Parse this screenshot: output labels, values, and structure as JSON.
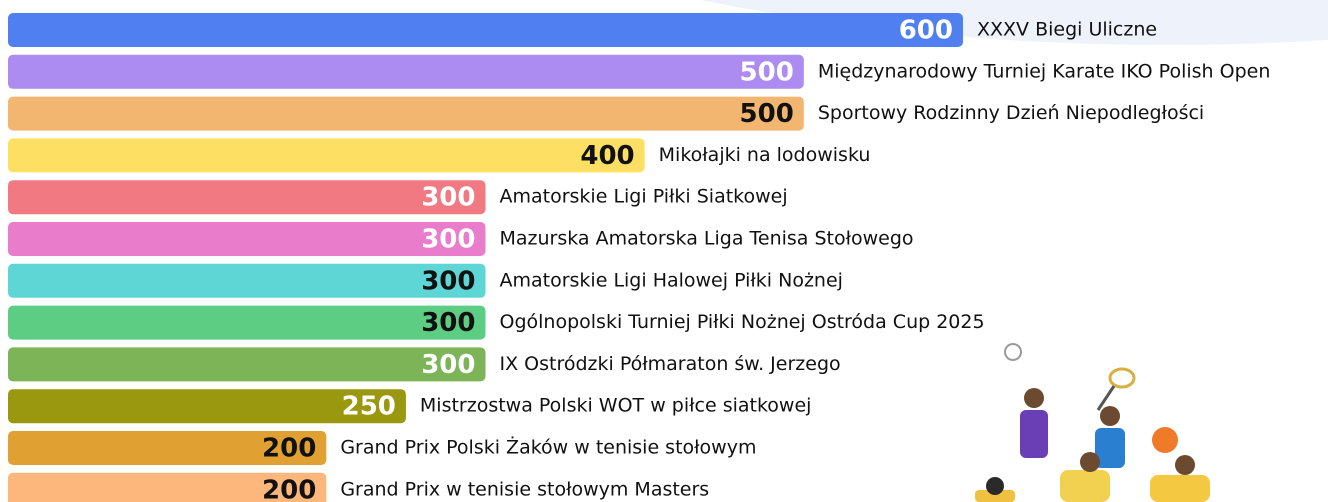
{
  "chart_data": {
    "type": "bar",
    "orientation": "horizontal",
    "categories": [
      "XXXV Biegi Uliczne",
      "Międzynarodowy Turniej Karate IKO Polish Open",
      "Sportowy Rodzinny Dzień Niepodległości",
      "Mikołajki na lodowisku",
      "Amatorskie Ligi Piłki Siatkowej",
      "Mazurska Amatorska Liga Tenisa Stołowego",
      "Amatorskie Ligi Halowej Piłki Nożnej",
      "Ogólnopolski Turniej Piłki Nożnej Ostróda Cup 2025",
      "IX Ostródzki Półmaraton św. Jerzego",
      "Mistrzostwa Polski WOT w piłce siatkowej",
      "Grand Prix Polski Żaków w tenisie stołowym",
      "Grand Prix w tenisie stołowym Masters"
    ],
    "values": [
      600,
      500,
      500,
      400,
      300,
      300,
      300,
      300,
      300,
      250,
      200,
      200
    ],
    "colors": [
      "#4f7ff0",
      "#ad8cf1",
      "#f3b670",
      "#fde063",
      "#f07982",
      "#e97dcb",
      "#5fd6d6",
      "#5ccd82",
      "#7db457",
      "#9a980f",
      "#e1a132",
      "#fdb67b"
    ],
    "value_label_colors": [
      "#ffffff",
      "#ffffff",
      "#111111",
      "#111111",
      "#ffffff",
      "#ffffff",
      "#111111",
      "#111111",
      "#ffffff",
      "#ffffff",
      "#111111",
      "#111111"
    ]
  }
}
